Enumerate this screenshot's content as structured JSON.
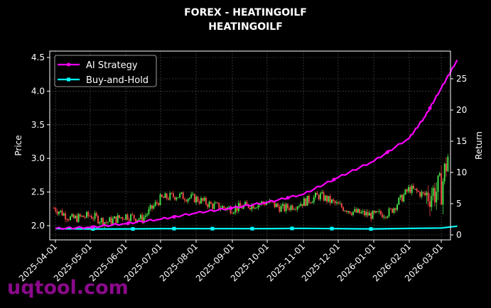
{
  "title": "FOREX - HEATINGOILF",
  "subtitle": "HEATINGOILF",
  "watermark": "uqtool.com",
  "colors": {
    "background": "#000000",
    "ai_strategy": "#ff00ff",
    "buy_and_hold": "#00ffff",
    "candle_up": "#44dd44",
    "candle_down": "#ee4444",
    "grid": "#555555",
    "watermark": "#8b0a8b"
  },
  "chart_data": {
    "type": "line",
    "title": "FOREX - HEATINGOILF\nHEATINGOILF",
    "xlabel": "",
    "ylabel": "Price",
    "y2label": "Return",
    "ylim": [
      1.85,
      4.6
    ],
    "y2lim": [
      -0.3,
      29
    ],
    "yticks": [
      2.0,
      2.5,
      3.0,
      3.5,
      4.0,
      4.5
    ],
    "y2ticks": [
      0,
      5,
      10,
      15,
      20,
      25
    ],
    "x_tick_labels": [
      "2025-04-01",
      "2025-05-01",
      "2025-06-01",
      "2025-07-01",
      "2025-08-01",
      "2025-09-01",
      "2025-10-01",
      "2025-11-01",
      "2025-12-01",
      "2026-01-01",
      "2026-02-01",
      "2026-03-01"
    ],
    "grid": true,
    "legend_position": "upper left",
    "legend": [
      "AI Strategy",
      "Buy-and-Hold"
    ],
    "series": [
      {
        "name": "AI Strategy",
        "axis": "right",
        "x": [
          "2025-04-01",
          "2025-05-01",
          "2025-06-01",
          "2025-07-01",
          "2025-08-01",
          "2025-09-01",
          "2025-10-01",
          "2025-11-01",
          "2025-12-01",
          "2026-01-01",
          "2026-02-01",
          "2026-02-15",
          "2026-03-01",
          "2026-03-15"
        ],
        "values": [
          1.0,
          1.2,
          1.8,
          2.5,
          3.5,
          4.3,
          5.2,
          6.5,
          9.2,
          11.8,
          15.5,
          19.0,
          23.5,
          28.0
        ]
      },
      {
        "name": "Buy-and-Hold",
        "axis": "right",
        "x": [
          "2025-04-01",
          "2025-05-01",
          "2025-06-01",
          "2025-07-01",
          "2025-08-01",
          "2025-09-01",
          "2025-10-01",
          "2025-11-01",
          "2025-12-01",
          "2026-01-01",
          "2026-02-01",
          "2026-03-01",
          "2026-03-15"
        ],
        "values": [
          1.0,
          0.95,
          0.95,
          1.0,
          1.0,
          1.0,
          1.0,
          1.05,
          1.0,
          0.95,
          1.05,
          1.1,
          1.4
        ]
      },
      {
        "name": "Price (candlestick)",
        "axis": "left",
        "x": [
          "2025-04-01",
          "2025-04-15",
          "2025-05-01",
          "2025-05-15",
          "2025-06-01",
          "2025-06-15",
          "2025-07-01",
          "2025-07-15",
          "2025-08-01",
          "2025-08-15",
          "2025-09-01",
          "2025-09-15",
          "2025-10-01",
          "2025-10-15",
          "2025-11-01",
          "2025-11-15",
          "2025-12-01",
          "2025-12-15",
          "2026-01-01",
          "2026-01-15",
          "2026-02-01",
          "2026-02-15",
          "2026-03-01",
          "2026-03-10",
          "2026-03-15"
        ],
        "values": [
          2.25,
          2.1,
          2.15,
          2.05,
          2.15,
          2.1,
          2.4,
          2.45,
          2.4,
          2.3,
          2.25,
          2.3,
          2.35,
          2.25,
          2.35,
          2.45,
          2.3,
          2.2,
          2.15,
          2.2,
          2.55,
          2.45,
          2.55,
          3.3,
          3.5
        ]
      }
    ]
  }
}
